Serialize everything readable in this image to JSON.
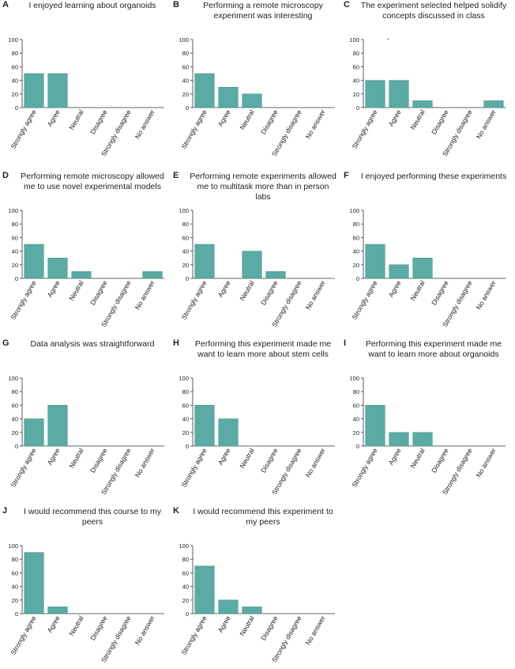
{
  "figure": {
    "stray_mark": "-",
    "categories": [
      "Strongly agree",
      "Agree",
      "Neutral",
      "Disagree",
      "Strongly disagree",
      "No answer"
    ],
    "bar_color": "#5aaba4",
    "bar_edge_color": "#3f8b84"
  },
  "chart_data": [
    {
      "type": "bar",
      "panel": "A",
      "title": "I enjoyed learning about organoids",
      "categories": [
        "Strongly agree",
        "Agree",
        "Neutral",
        "Disagree",
        "Strongly disagree",
        "No answer"
      ],
      "values": [
        50,
        50,
        0,
        0,
        0,
        0
      ],
      "ylim": [
        0,
        100
      ],
      "yticks": [
        0,
        20,
        40,
        60,
        80,
        100
      ]
    },
    {
      "type": "bar",
      "panel": "B",
      "title": "Performing a remote microscopy experiment was interesting",
      "categories": [
        "Strongly agree",
        "Agree",
        "Neutral",
        "Disagree",
        "Strongly disagree",
        "No answer"
      ],
      "values": [
        50,
        30,
        20,
        0,
        0,
        0
      ],
      "ylim": [
        0,
        100
      ],
      "yticks": [
        0,
        20,
        40,
        60,
        80,
        100
      ]
    },
    {
      "type": "bar",
      "panel": "C",
      "title": "The experiment selected helped solidify concepts discussed in class",
      "categories": [
        "Strongly agree",
        "Agree",
        "Neutral",
        "Disagree",
        "Strongly disagree",
        "No answer"
      ],
      "values": [
        40,
        40,
        10,
        0,
        0,
        10
      ],
      "ylim": [
        0,
        100
      ],
      "yticks": [
        0,
        20,
        40,
        60,
        80,
        100
      ]
    },
    {
      "type": "bar",
      "panel": "D",
      "title": "Performing remote microscopy allowed me to use novel experimental models",
      "categories": [
        "Strongly agree",
        "Agree",
        "Neutral",
        "Disagree",
        "Strongly disagree",
        "No answer"
      ],
      "values": [
        50,
        30,
        10,
        0,
        0,
        10
      ],
      "ylim": [
        0,
        100
      ],
      "yticks": [
        0,
        20,
        40,
        60,
        80,
        100
      ]
    },
    {
      "type": "bar",
      "panel": "E",
      "title": "Performing remote experiments allowed me to multitask more than in person labs",
      "categories": [
        "Strongly agree",
        "Agree",
        "Neutral",
        "Disagree",
        "Strongly disagree",
        "No answer"
      ],
      "values": [
        50,
        0,
        40,
        10,
        0,
        0
      ],
      "ylim": [
        0,
        100
      ],
      "yticks": [
        0,
        20,
        40,
        60,
        80,
        100
      ]
    },
    {
      "type": "bar",
      "panel": "F",
      "title": "I enjoyed performing these experiments",
      "categories": [
        "Strongly agree",
        "Agree",
        "Neutral",
        "Disagree",
        "Strongly disagree",
        "No answer"
      ],
      "values": [
        50,
        20,
        30,
        0,
        0,
        0
      ],
      "ylim": [
        0,
        100
      ],
      "yticks": [
        0,
        20,
        40,
        60,
        80,
        100
      ]
    },
    {
      "type": "bar",
      "panel": "G",
      "title": "Data analysis was straightforward",
      "categories": [
        "Strongly agree",
        "Agree",
        "Neutral",
        "Disagree",
        "Strongly disagree",
        "No answer"
      ],
      "values": [
        40,
        60,
        0,
        0,
        0,
        0
      ],
      "ylim": [
        0,
        100
      ],
      "yticks": [
        0,
        20,
        40,
        60,
        80,
        100
      ]
    },
    {
      "type": "bar",
      "panel": "H",
      "title": "Performing this experiment made me want to learn more about stem cells",
      "categories": [
        "Strongly agree",
        "Agree",
        "Neutral",
        "Disagree",
        "Strongly disagree",
        "No answer"
      ],
      "values": [
        60,
        40,
        0,
        0,
        0,
        0
      ],
      "ylim": [
        0,
        100
      ],
      "yticks": [
        0,
        20,
        40,
        60,
        80,
        100
      ]
    },
    {
      "type": "bar",
      "panel": "I",
      "title": "Performing this experiment made me want to learn more about organoids",
      "categories": [
        "Strongly agree",
        "Agree",
        "Neutral",
        "Disagree",
        "Strongly disagree",
        "No answer"
      ],
      "values": [
        60,
        20,
        20,
        0,
        0,
        0
      ],
      "ylim": [
        0,
        100
      ],
      "yticks": [
        0,
        20,
        40,
        60,
        80,
        100
      ]
    },
    {
      "type": "bar",
      "panel": "J",
      "title": "I would recommend this course to my peers",
      "categories": [
        "Strongly agree",
        "Agree",
        "Neutral",
        "Disagree",
        "Strongly disagree",
        "No answer"
      ],
      "values": [
        90,
        10,
        0,
        0,
        0,
        0
      ],
      "ylim": [
        0,
        100
      ],
      "yticks": [
        0,
        20,
        40,
        60,
        80,
        100
      ]
    },
    {
      "type": "bar",
      "panel": "K",
      "title": "I would recommend this experiment to my peers",
      "categories": [
        "Strongly agree",
        "Agree",
        "Neutral",
        "Disagree",
        "Strongly disagree",
        "No answer"
      ],
      "values": [
        70,
        20,
        10,
        0,
        0,
        0
      ],
      "ylim": [
        0,
        100
      ],
      "yticks": [
        0,
        20,
        40,
        60,
        80,
        100
      ]
    }
  ]
}
